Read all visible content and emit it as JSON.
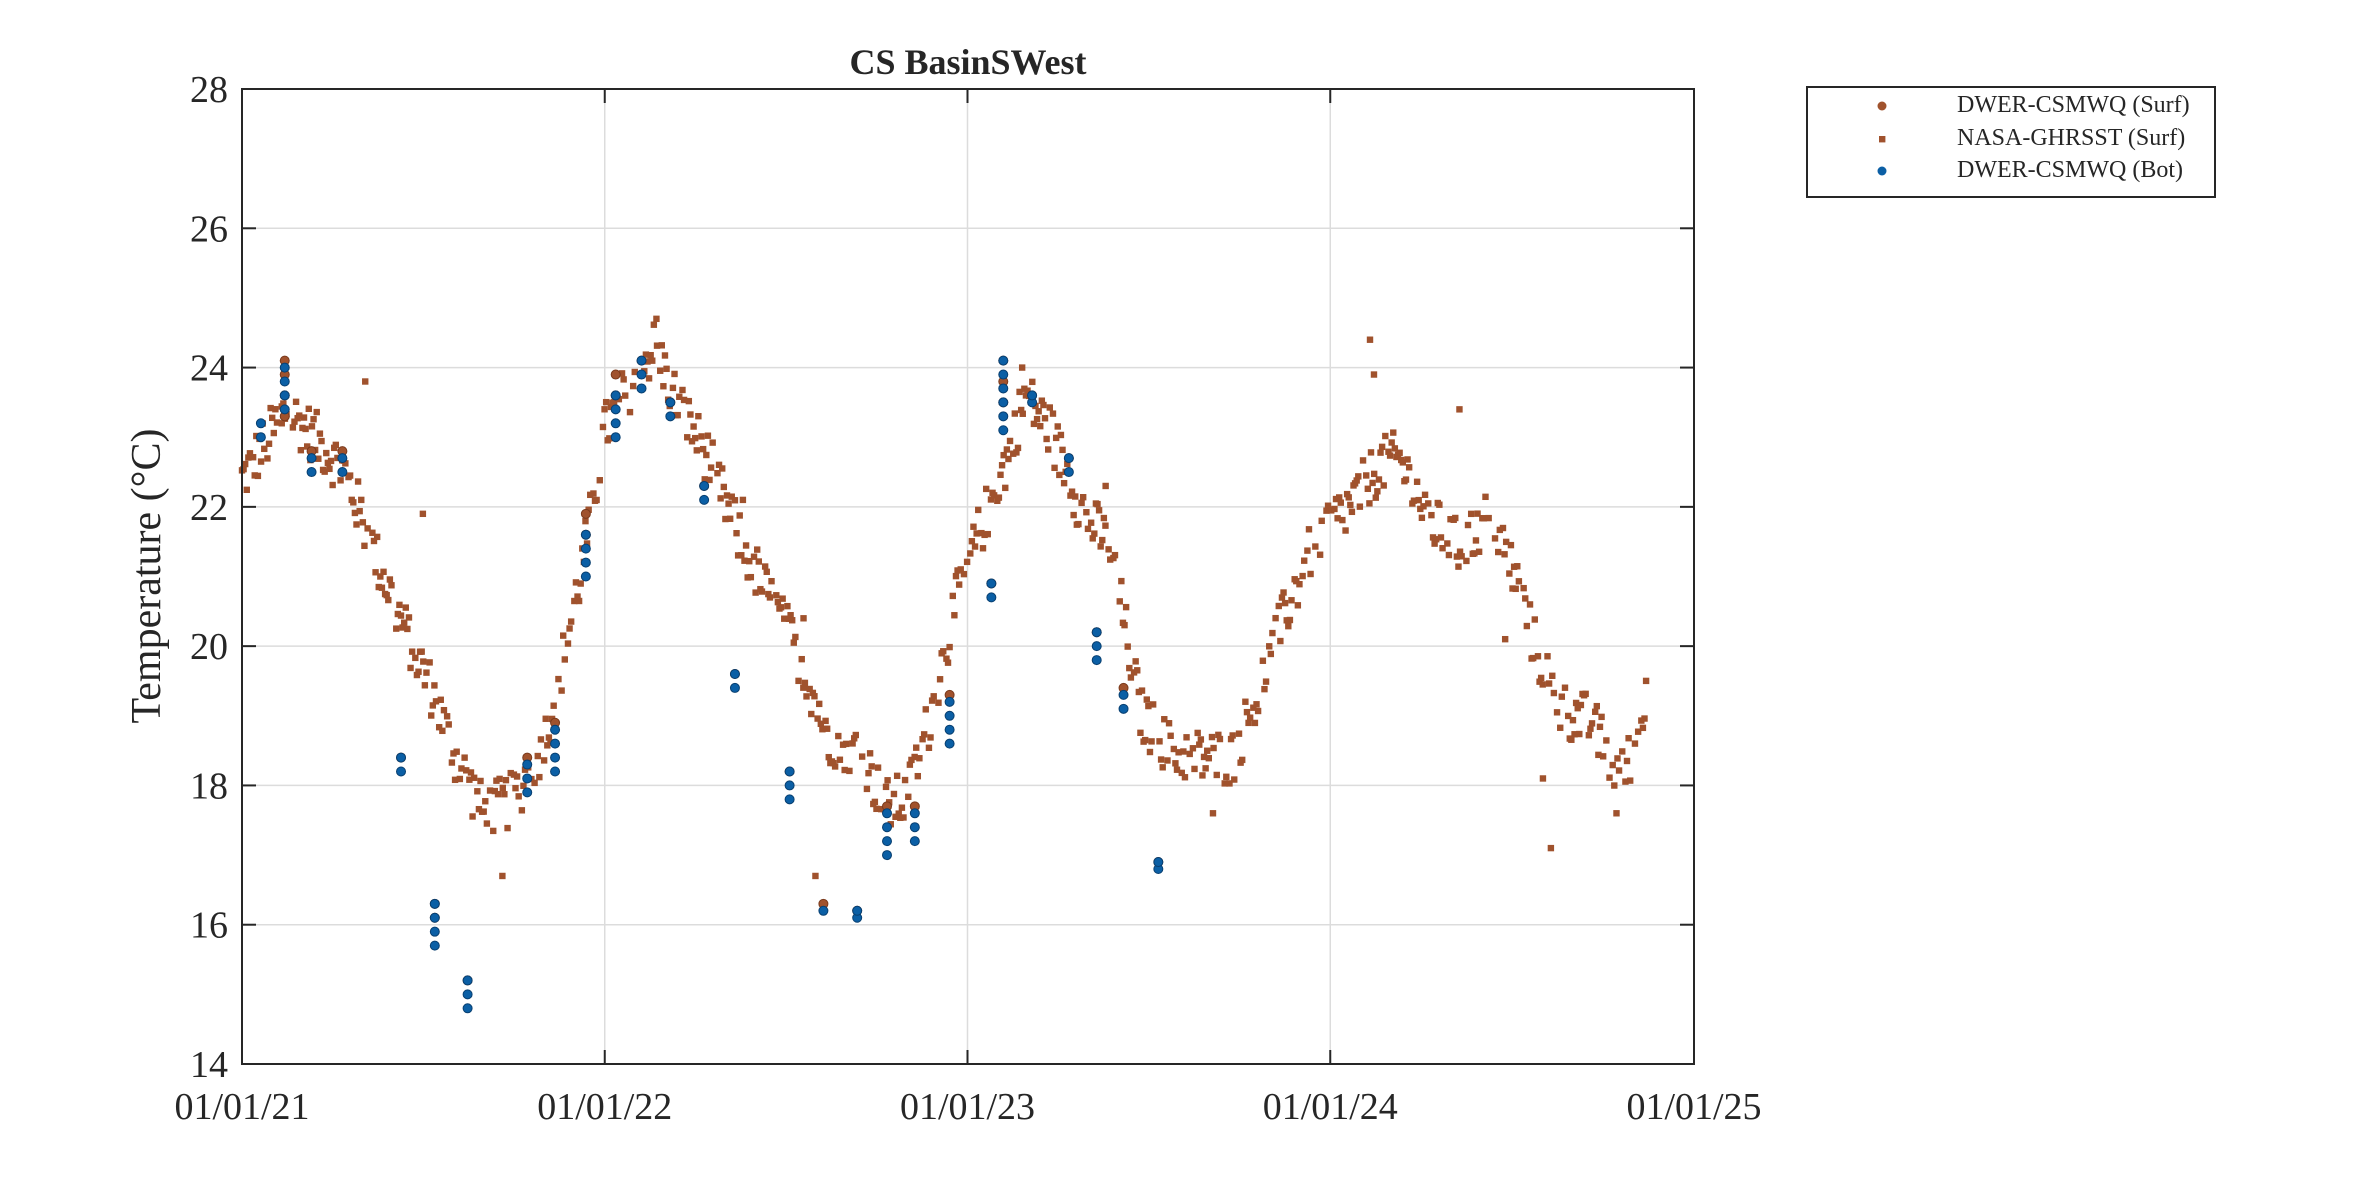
{
  "chart_data": {
    "type": "scatter",
    "title": "CS BasinSWest",
    "xlabel": "",
    "ylabel": "Temperature (°C)",
    "x_scale": "date",
    "xlim": [
      "2021-01-01",
      "2025-01-01"
    ],
    "ylim": [
      14,
      28
    ],
    "xticks": [
      "2021-01-01",
      "2022-01-01",
      "2023-01-01",
      "2024-01-01",
      "2025-01-01"
    ],
    "xtick_labels": [
      "01/01/21",
      "01/01/22",
      "01/01/23",
      "01/01/24",
      "01/01/25"
    ],
    "yticks": [
      14,
      16,
      18,
      20,
      22,
      24,
      26,
      28
    ],
    "ytick_labels": [
      "14",
      "16",
      "18",
      "20",
      "22",
      "24",
      "26",
      "28"
    ],
    "grid": true,
    "legend_position": "outside top-right",
    "colors": {
      "surface": "#a0522d",
      "bottom": "#0b5fa5",
      "grid": "#dcdcdc",
      "axes": "#262626"
    },
    "series": [
      {
        "name": "DWER-CSMWQ (Surf)",
        "marker": "circle",
        "color": "#a0522d",
        "points": [
          [
            "2021-02-13",
            23.3
          ],
          [
            "2021-02-13",
            23.6
          ],
          [
            "2021-02-13",
            23.9
          ],
          [
            "2021-02-13",
            24.1
          ],
          [
            "2021-03-12",
            22.8
          ],
          [
            "2021-04-12",
            22.8
          ],
          [
            "2021-06-10",
            18.4
          ],
          [
            "2021-07-14",
            16.3
          ],
          [
            "2021-07-14",
            16.1
          ],
          [
            "2021-08-16",
            15.2
          ],
          [
            "2021-10-15",
            18.4
          ],
          [
            "2021-11-12",
            18.9
          ],
          [
            "2021-12-13",
            21.6
          ],
          [
            "2021-12-13",
            21.9
          ],
          [
            "2022-01-12",
            23.6
          ],
          [
            "2022-01-12",
            23.9
          ],
          [
            "2022-02-07",
            24.1
          ],
          [
            "2022-03-08",
            23.5
          ],
          [
            "2022-04-11",
            22.3
          ],
          [
            "2022-05-12",
            19.6
          ],
          [
            "2022-07-06",
            18.2
          ],
          [
            "2022-08-09",
            16.3
          ],
          [
            "2022-09-12",
            16.2
          ],
          [
            "2022-10-12",
            17.7
          ],
          [
            "2022-11-09",
            17.7
          ],
          [
            "2022-12-14",
            19.3
          ],
          [
            "2023-01-25",
            20.9
          ],
          [
            "2023-02-06",
            23.5
          ],
          [
            "2023-02-06",
            23.8
          ],
          [
            "2023-02-06",
            24.1
          ],
          [
            "2023-03-07",
            23.6
          ],
          [
            "2023-04-13",
            22.7
          ],
          [
            "2023-05-11",
            20.2
          ],
          [
            "2023-06-07",
            19.4
          ],
          [
            "2023-07-12",
            16.9
          ]
        ]
      },
      {
        "name": "NASA-GHRSST (Surf)",
        "marker": "square",
        "color": "#a0522d",
        "anchors": [
          [
            "2021-01-01",
            22.4
          ],
          [
            "2021-02-15",
            23.4
          ],
          [
            "2021-03-15",
            23.0
          ],
          [
            "2021-04-15",
            22.5
          ],
          [
            "2021-05-15",
            21.3
          ],
          [
            "2021-06-15",
            20.2
          ],
          [
            "2021-07-10",
            19.4
          ],
          [
            "2021-08-01",
            18.5
          ],
          [
            "2021-09-01",
            17.6
          ],
          [
            "2021-10-01",
            17.8
          ],
          [
            "2021-11-01",
            18.6
          ],
          [
            "2021-11-20",
            19.8
          ],
          [
            "2021-12-10",
            21.2
          ],
          [
            "2022-01-01",
            23.1
          ],
          [
            "2022-02-01",
            23.9
          ],
          [
            "2022-02-20",
            24.3
          ],
          [
            "2022-03-15",
            23.5
          ],
          [
            "2022-04-15",
            22.7
          ],
          [
            "2022-05-15",
            21.6
          ],
          [
            "2022-06-15",
            20.7
          ],
          [
            "2022-07-15",
            19.9
          ],
          [
            "2022-08-15",
            18.7
          ],
          [
            "2022-09-15",
            18.5
          ],
          [
            "2022-10-10",
            17.7
          ],
          [
            "2022-11-01",
            17.8
          ],
          [
            "2022-11-25",
            19.0
          ],
          [
            "2022-12-25",
            20.9
          ],
          [
            "2023-01-20",
            21.9
          ],
          [
            "2023-02-10",
            22.7
          ],
          [
            "2023-02-28",
            23.6
          ],
          [
            "2023-03-25",
            23.1
          ],
          [
            "2023-04-25",
            22.0
          ],
          [
            "2023-05-25",
            21.4
          ],
          [
            "2023-06-25",
            19.0
          ],
          [
            "2023-07-25",
            18.5
          ],
          [
            "2023-08-25",
            18.4
          ],
          [
            "2023-09-25",
            18.4
          ],
          [
            "2023-10-20",
            19.3
          ],
          [
            "2023-11-20",
            20.6
          ],
          [
            "2023-12-20",
            21.6
          ],
          [
            "2024-01-20",
            22.0
          ],
          [
            "2024-02-20",
            22.6
          ],
          [
            "2024-03-10",
            22.7
          ],
          [
            "2024-04-10",
            21.8
          ],
          [
            "2024-05-10",
            21.4
          ],
          [
            "2024-06-10",
            21.9
          ],
          [
            "2024-07-05",
            21.0
          ],
          [
            "2024-07-25",
            20.0
          ],
          [
            "2024-08-20",
            19.1
          ],
          [
            "2024-09-20",
            18.9
          ],
          [
            "2024-10-20",
            18.1
          ],
          [
            "2024-11-05",
            18.7
          ],
          [
            "2024-11-15",
            19.3
          ]
        ],
        "spikes": [
          [
            "2021-02-10",
            23.2
          ],
          [
            "2021-05-05",
            23.8
          ],
          [
            "2021-07-02",
            21.9
          ],
          [
            "2021-09-20",
            16.7
          ],
          [
            "2022-02-22",
            24.7
          ],
          [
            "2022-05-20",
            22.1
          ],
          [
            "2022-08-01",
            16.7
          ],
          [
            "2022-07-20",
            20.4
          ],
          [
            "2023-02-25",
            24.0
          ],
          [
            "2023-05-20",
            22.3
          ],
          [
            "2023-09-05",
            17.6
          ],
          [
            "2024-02-10",
            24.4
          ],
          [
            "2024-02-14",
            23.9
          ],
          [
            "2024-05-10",
            23.4
          ],
          [
            "2024-06-25",
            20.1
          ],
          [
            "2024-08-10",
            17.1
          ],
          [
            "2024-08-02",
            18.1
          ],
          [
            "2024-10-15",
            17.6
          ]
        ]
      },
      {
        "name": "DWER-CSMWQ (Bot)",
        "marker": "circle",
        "color": "#0b5fa5",
        "points": [
          [
            "2021-01-20",
            23.0
          ],
          [
            "2021-01-20",
            23.2
          ],
          [
            "2021-02-13",
            23.4
          ],
          [
            "2021-02-13",
            23.6
          ],
          [
            "2021-02-13",
            23.8
          ],
          [
            "2021-02-13",
            24.0
          ],
          [
            "2021-03-12",
            22.5
          ],
          [
            "2021-03-12",
            22.7
          ],
          [
            "2021-04-12",
            22.5
          ],
          [
            "2021-04-12",
            22.7
          ],
          [
            "2021-06-10",
            18.2
          ],
          [
            "2021-06-10",
            18.4
          ],
          [
            "2021-07-14",
            15.7
          ],
          [
            "2021-07-14",
            15.9
          ],
          [
            "2021-07-14",
            16.1
          ],
          [
            "2021-07-14",
            16.3
          ],
          [
            "2021-08-16",
            14.8
          ],
          [
            "2021-08-16",
            15.0
          ],
          [
            "2021-08-16",
            15.2
          ],
          [
            "2021-10-15",
            17.9
          ],
          [
            "2021-10-15",
            18.1
          ],
          [
            "2021-10-15",
            18.3
          ],
          [
            "2021-11-12",
            18.2
          ],
          [
            "2021-11-12",
            18.4
          ],
          [
            "2021-11-12",
            18.6
          ],
          [
            "2021-11-12",
            18.8
          ],
          [
            "2021-12-13",
            21.0
          ],
          [
            "2021-12-13",
            21.2
          ],
          [
            "2021-12-13",
            21.4
          ],
          [
            "2021-12-13",
            21.6
          ],
          [
            "2022-01-12",
            23.0
          ],
          [
            "2022-01-12",
            23.2
          ],
          [
            "2022-01-12",
            23.4
          ],
          [
            "2022-01-12",
            23.6
          ],
          [
            "2022-02-07",
            23.7
          ],
          [
            "2022-02-07",
            23.9
          ],
          [
            "2022-02-07",
            24.1
          ],
          [
            "2022-03-08",
            23.3
          ],
          [
            "2022-03-08",
            23.5
          ],
          [
            "2022-04-11",
            22.1
          ],
          [
            "2022-04-11",
            22.3
          ],
          [
            "2022-05-12",
            19.4
          ],
          [
            "2022-05-12",
            19.6
          ],
          [
            "2022-07-06",
            17.8
          ],
          [
            "2022-07-06",
            18.0
          ],
          [
            "2022-07-06",
            18.2
          ],
          [
            "2022-08-09",
            16.2
          ],
          [
            "2022-09-12",
            16.1
          ],
          [
            "2022-09-12",
            16.2
          ],
          [
            "2022-10-12",
            17.0
          ],
          [
            "2022-10-12",
            17.2
          ],
          [
            "2022-10-12",
            17.4
          ],
          [
            "2022-10-12",
            17.6
          ],
          [
            "2022-11-09",
            17.2
          ],
          [
            "2022-11-09",
            17.4
          ],
          [
            "2022-11-09",
            17.6
          ],
          [
            "2022-12-14",
            18.6
          ],
          [
            "2022-12-14",
            18.8
          ],
          [
            "2022-12-14",
            19.0
          ],
          [
            "2022-12-14",
            19.2
          ],
          [
            "2023-01-25",
            20.7
          ],
          [
            "2023-01-25",
            20.9
          ],
          [
            "2023-02-06",
            23.1
          ],
          [
            "2023-02-06",
            23.3
          ],
          [
            "2023-02-06",
            23.5
          ],
          [
            "2023-02-06",
            23.7
          ],
          [
            "2023-02-06",
            23.9
          ],
          [
            "2023-02-06",
            24.1
          ],
          [
            "2023-03-07",
            23.5
          ],
          [
            "2023-03-07",
            23.6
          ],
          [
            "2023-04-13",
            22.5
          ],
          [
            "2023-04-13",
            22.7
          ],
          [
            "2023-05-11",
            19.8
          ],
          [
            "2023-05-11",
            20.0
          ],
          [
            "2023-05-11",
            20.2
          ],
          [
            "2023-06-07",
            19.1
          ],
          [
            "2023-06-07",
            19.3
          ],
          [
            "2023-07-12",
            16.8
          ],
          [
            "2023-07-12",
            16.9
          ]
        ]
      }
    ]
  }
}
